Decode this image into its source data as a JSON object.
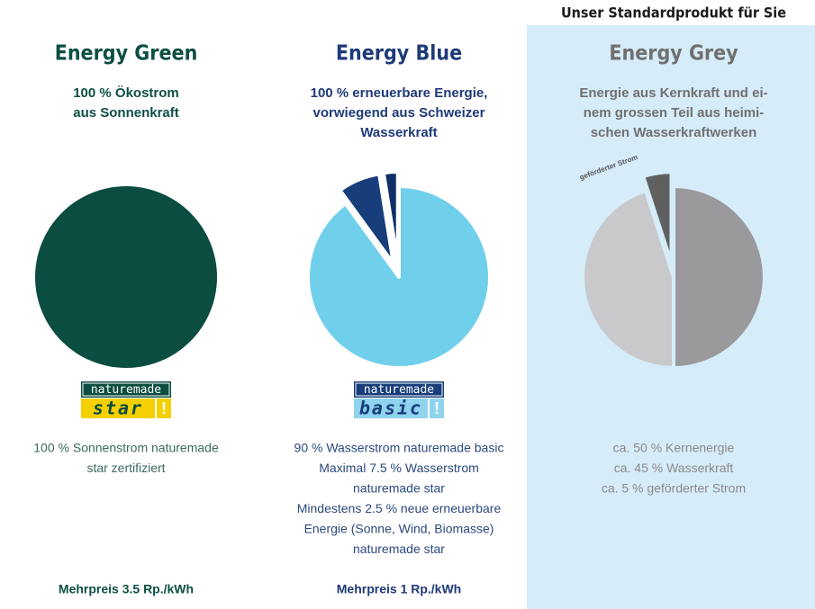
{
  "header": "Unser Standardprodukt für Sie",
  "products": [
    {
      "title": "Energy Green",
      "color": "#0d4f43",
      "subtitle": [
        "100 % Ökostrom",
        "aus Sonnenkraft"
      ],
      "pie": {
        "slices": [
          {
            "value": 100,
            "color": "#0b4d40"
          }
        ]
      },
      "logo": {
        "top": "naturemade",
        "bottom": "star",
        "mark": "!",
        "top_color": "#0b4d40",
        "bottom_color": "#f5d000",
        "text_color": "#0b4d40"
      },
      "description": [
        "100 % Sonnenstrom naturemade",
        "star zertifiziert"
      ],
      "price": "Mehrpreis 3.5 Rp./kWh"
    },
    {
      "title": "Energy Blue",
      "color": "#1f3a78",
      "subtitle": [
        "100 % erneuerbare Energie,",
        "vorwiegend aus Schweizer",
        "Wasserkraft"
      ],
      "pie": {
        "slices": [
          {
            "value": 90,
            "color": "#70cfeb"
          },
          {
            "value": 7.5,
            "color": "#173d7a",
            "explode": true
          },
          {
            "value": 2.5,
            "color": "#0f2f66",
            "explode": true
          }
        ]
      },
      "logo": {
        "top": "naturemade",
        "bottom": "basic",
        "mark": "!",
        "top_color": "#173d7a",
        "bottom_color": "#8fd3ee",
        "text_color": "#173d7a"
      },
      "description": [
        "90 % Wasserstrom naturemade basic",
        "Maximal 7.5 % Wasserstrom",
        "naturemade star",
        "Mindestens 2.5 % neue erneuerbare",
        "Energie (Sonne, Wind, Biomasse)",
        "naturemade star"
      ],
      "price": "Mehrpreis 1 Rp./kWh"
    },
    {
      "title": "Energy Grey",
      "color": "#707070",
      "highlight": true,
      "subtitle": [
        "Energie aus Kernkraft und ei-",
        "nem grossen Teil aus heimi-",
        "schen Wasserkraftwerken"
      ],
      "pie": {
        "slices": [
          {
            "value": 50,
            "color": "#9a9a9c"
          },
          {
            "value": 45,
            "color": "#c9c9cb"
          },
          {
            "value": 5,
            "color": "#606060",
            "explode": true
          }
        ],
        "label": "geförderter Strom"
      },
      "description": [
        "ca. 50 % Kernenergie",
        "ca. 45 % Wasserkraft",
        "ca. 5 % geförderter Strom"
      ]
    }
  ]
}
